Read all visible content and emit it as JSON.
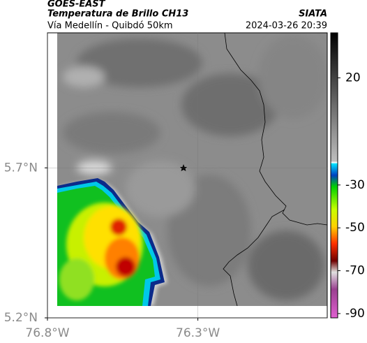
{
  "header": {
    "satellite": "GOES-EAST",
    "product": "Temperatura de Brillo CH13",
    "region": "Vía Medellín - Quibdó 50km",
    "source": "SIATA",
    "datetime": "2024-03-26 20:39"
  },
  "map": {
    "xlim": [
      -76.8,
      -75.87
    ],
    "ylim": [
      5.2,
      6.15
    ],
    "xticks": [
      {
        "value": -76.8,
        "label": "76.8°W"
      },
      {
        "value": -76.3,
        "label": "76.3°W"
      }
    ],
    "yticks": [
      {
        "value": 5.7,
        "label": "5.7°N"
      },
      {
        "value": 5.2,
        "label": "5.2°N"
      }
    ]
  },
  "colorbar": {
    "lim": [
      41,
      -92
    ],
    "ticks": [
      20,
      -30,
      -50,
      -70,
      -90
    ]
  }
}
